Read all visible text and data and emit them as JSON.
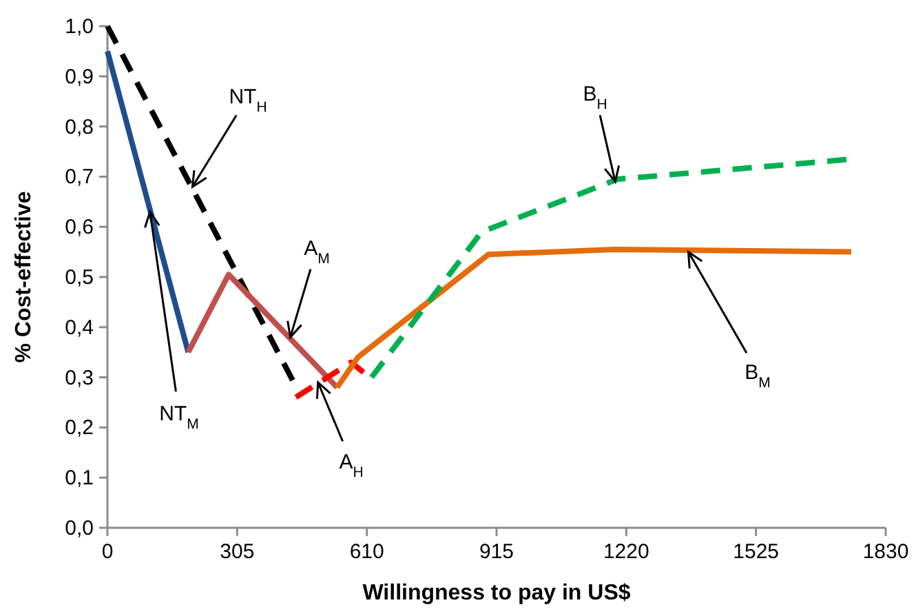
{
  "chart_data": {
    "type": "line",
    "xlabel": "Willingness to pay in US$",
    "ylabel": "% Cost-effective",
    "xlim": [
      0,
      1830
    ],
    "xticks": [
      0,
      305,
      610,
      915,
      1220,
      1525,
      1830
    ],
    "ylim": [
      0,
      1
    ],
    "yticks": [
      {
        "value": 0,
        "label": "0,0"
      },
      {
        "value": 0.1,
        "label": "0,1"
      },
      {
        "value": 0.2,
        "label": "0,2"
      },
      {
        "value": 0.3,
        "label": "0,3"
      },
      {
        "value": 0.4,
        "label": "0,4"
      },
      {
        "value": 0.5,
        "label": "0,5"
      },
      {
        "value": 0.6,
        "label": "0,6"
      },
      {
        "value": 0.7,
        "label": "0,7"
      },
      {
        "value": 0.8,
        "label": "0,8"
      },
      {
        "value": 0.9,
        "label": "0,9"
      },
      {
        "value": 1,
        "label": "1,0"
      }
    ],
    "grid": false,
    "marker": "none",
    "series": [
      {
        "color": "#000000",
        "line_style": "dashed",
        "x": [
          0,
          438
        ],
        "values": [
          1.0,
          0.29
        ]
      },
      {
        "color": "#1f4e8c",
        "line_style": "solid",
        "x": [
          0,
          190
        ],
        "values": [
          0.95,
          0.35
        ]
      },
      {
        "color": "#c0504d",
        "line_style": "solid",
        "x": [
          190,
          285,
          540
        ],
        "values": [
          0.35,
          0.505,
          0.28
        ]
      },
      {
        "color": "#ff0000",
        "line_style": "dashed",
        "x": [
          443,
          573,
          602
        ],
        "values": [
          0.26,
          0.33,
          0.31
        ]
      },
      {
        "color": "#e46c0a",
        "line_style": "solid",
        "x": [
          540,
          589,
          896,
          1193,
          1749
        ],
        "values": [
          0.28,
          0.34,
          0.545,
          0.555,
          0.55
        ]
      },
      {
        "color": "#00b050",
        "line_style": "dashed",
        "x": [
          621,
          880,
          1200,
          1750
        ],
        "values": [
          0.3,
          0.59,
          0.695,
          0.735
        ]
      }
    ],
    "annotations": [
      {
        "text": "NT$_{H}$",
        "x": 200,
        "y": 0.68
      },
      {
        "text": "NT$_{M}$",
        "x": 100,
        "y": 0.63
      },
      {
        "text": "A$_{M}$",
        "x": 430,
        "y": 0.38
      },
      {
        "text": "A$_{H}$",
        "x": 495,
        "y": 0.29
      },
      {
        "text": "B$_{H}$",
        "x": 1194,
        "y": 0.69
      },
      {
        "text": "B$_{M}$",
        "x": 1366,
        "y": 0.55
      }
    ]
  }
}
